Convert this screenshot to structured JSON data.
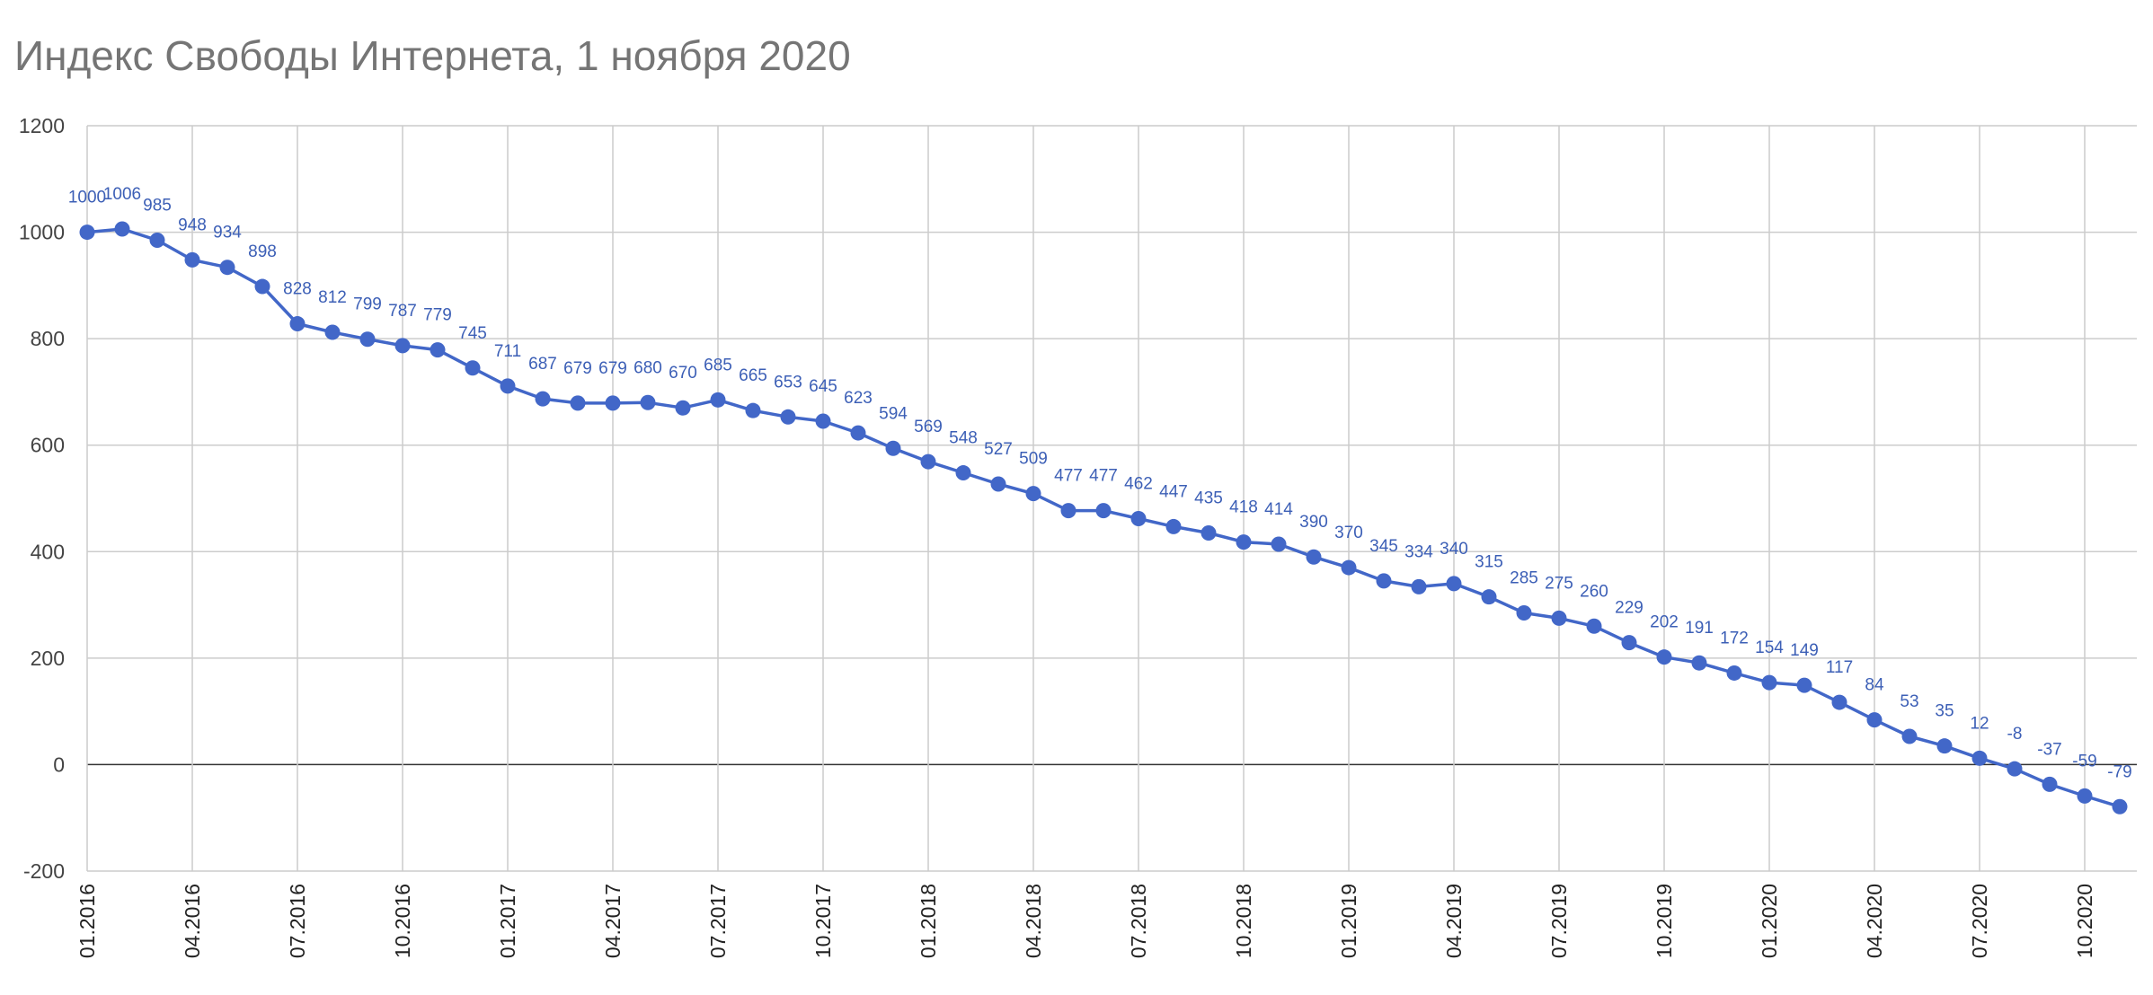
{
  "chart_data": {
    "type": "line",
    "title": "Индекс Свободы Интернета,  1 ноября  2020",
    "xlabel": "",
    "ylabel": "",
    "ylim": [
      -200,
      1200
    ],
    "yticks": [
      "1200",
      "1000",
      "800",
      "600",
      "400",
      "200",
      "0",
      "-200"
    ],
    "ytick_values": [
      1200,
      1000,
      800,
      600,
      400,
      200,
      0,
      -200
    ],
    "xtick_labels": [
      "01.2016",
      "04.2016",
      "07.2016",
      "10.2016",
      "01.2017",
      "04.2017",
      "07.2017",
      "10.2017",
      "01.2018",
      "04.2018",
      "07.2018",
      "10.2018",
      "01.2019",
      "04.2019",
      "07.2019",
      "10.2019",
      "01.2020",
      "04.2020",
      "07.2020",
      "10.2020"
    ],
    "x_start": "01.2016",
    "point_interval": "1 month",
    "grid": true,
    "legend": "none",
    "colors": {
      "series": "#4267c8",
      "labels": "#3c5fb6",
      "grid": "#cccccc",
      "zero_line": "#333333",
      "title": "#757575"
    },
    "values": [
      1000,
      1006,
      985,
      948,
      934,
      898,
      828,
      812,
      799,
      787,
      779,
      745,
      711,
      687,
      679,
      679,
      680,
      670,
      685,
      665,
      653,
      645,
      623,
      594,
      569,
      548,
      527,
      509,
      477,
      477,
      462,
      447,
      435,
      418,
      414,
      390,
      370,
      345,
      334,
      340,
      315,
      285,
      275,
      260,
      229,
      202,
      191,
      172,
      154,
      149,
      117,
      84,
      53,
      35,
      12,
      -8,
      -37,
      -59,
      -79
    ],
    "data_labels": [
      "1000",
      "1006",
      "985",
      "948",
      "934",
      "898",
      "828",
      "812",
      "799",
      "787",
      "779",
      "745",
      "711",
      "687",
      "679",
      "679",
      "680",
      "670",
      "685",
      "665",
      "653",
      "645",
      "623",
      "594",
      "569",
      "548",
      "527",
      "509",
      "477",
      "477",
      "462",
      "447",
      "435",
      "418",
      "414",
      "390",
      "370",
      "345",
      "334",
      "340",
      "315",
      "285",
      "275",
      "260",
      "229",
      "202",
      "191",
      "172",
      "154",
      "149",
      "117",
      "84",
      "53",
      "35",
      "12",
      "-8",
      "-37",
      "-59",
      "-79"
    ]
  }
}
